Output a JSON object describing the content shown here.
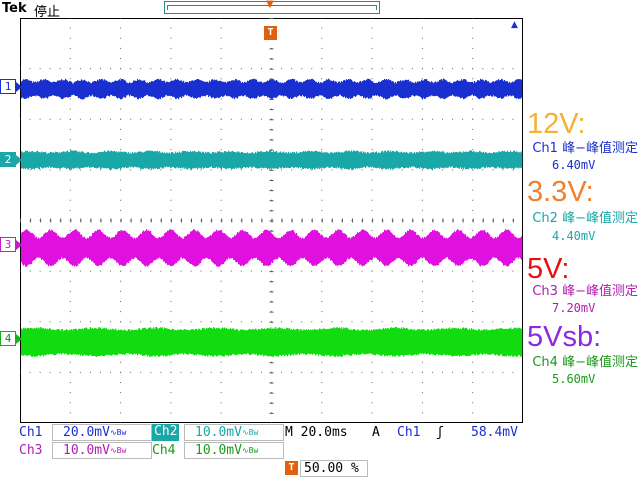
{
  "header": {
    "brand": "Tek",
    "status": "停止",
    "trigger_position_glyph": "T"
  },
  "channels": [
    {
      "id": "1",
      "color": "#1a2fcf"
    },
    {
      "id": "2",
      "color": "#1aa7a7"
    },
    {
      "id": "3",
      "color": "#e010e0"
    },
    {
      "id": "4",
      "color": "#10dc10"
    }
  ],
  "annotations": [
    {
      "label": "12V:",
      "color": "#f3b234"
    },
    {
      "label": "3.3V:",
      "color": "#f08030"
    },
    {
      "label": "5V:",
      "color": "#e81010"
    },
    {
      "label": "5Vsb:",
      "color": "#8a2ae0"
    }
  ],
  "measurements": [
    {
      "source": "Ch1",
      "name": "峰−峰值测定",
      "value": "6.40mV",
      "color": "#1a2fcf"
    },
    {
      "source": "Ch2",
      "name": "峰−峰值测定",
      "value": "4.40mV",
      "color": "#1aa7a7"
    },
    {
      "source": "Ch3",
      "name": "峰−峰值测定",
      "value": "7.20mV",
      "color": "#b020b0"
    },
    {
      "source": "Ch4",
      "name": "峰−峰值测定",
      "value": "5.60mV",
      "color": "#1a9a1a"
    }
  ],
  "settings": {
    "ch1_label": "Ch1",
    "ch1_scale": "20.0mV",
    "ch2_label": "Ch2",
    "ch2_scale": "10.0mV",
    "ch3_label": "Ch3",
    "ch3_scale": "10.0mV",
    "ch4_label": "Ch4",
    "ch4_scale": "10.0mV",
    "bw_glyph": "∿Bw",
    "timebase": "M 20.0ms",
    "acq_mode": "A",
    "trigger_source": "Ch1",
    "trigger_slope": "ʃ",
    "trigger_level": "58.4mV",
    "trigger_position": "50.00 %"
  }
}
